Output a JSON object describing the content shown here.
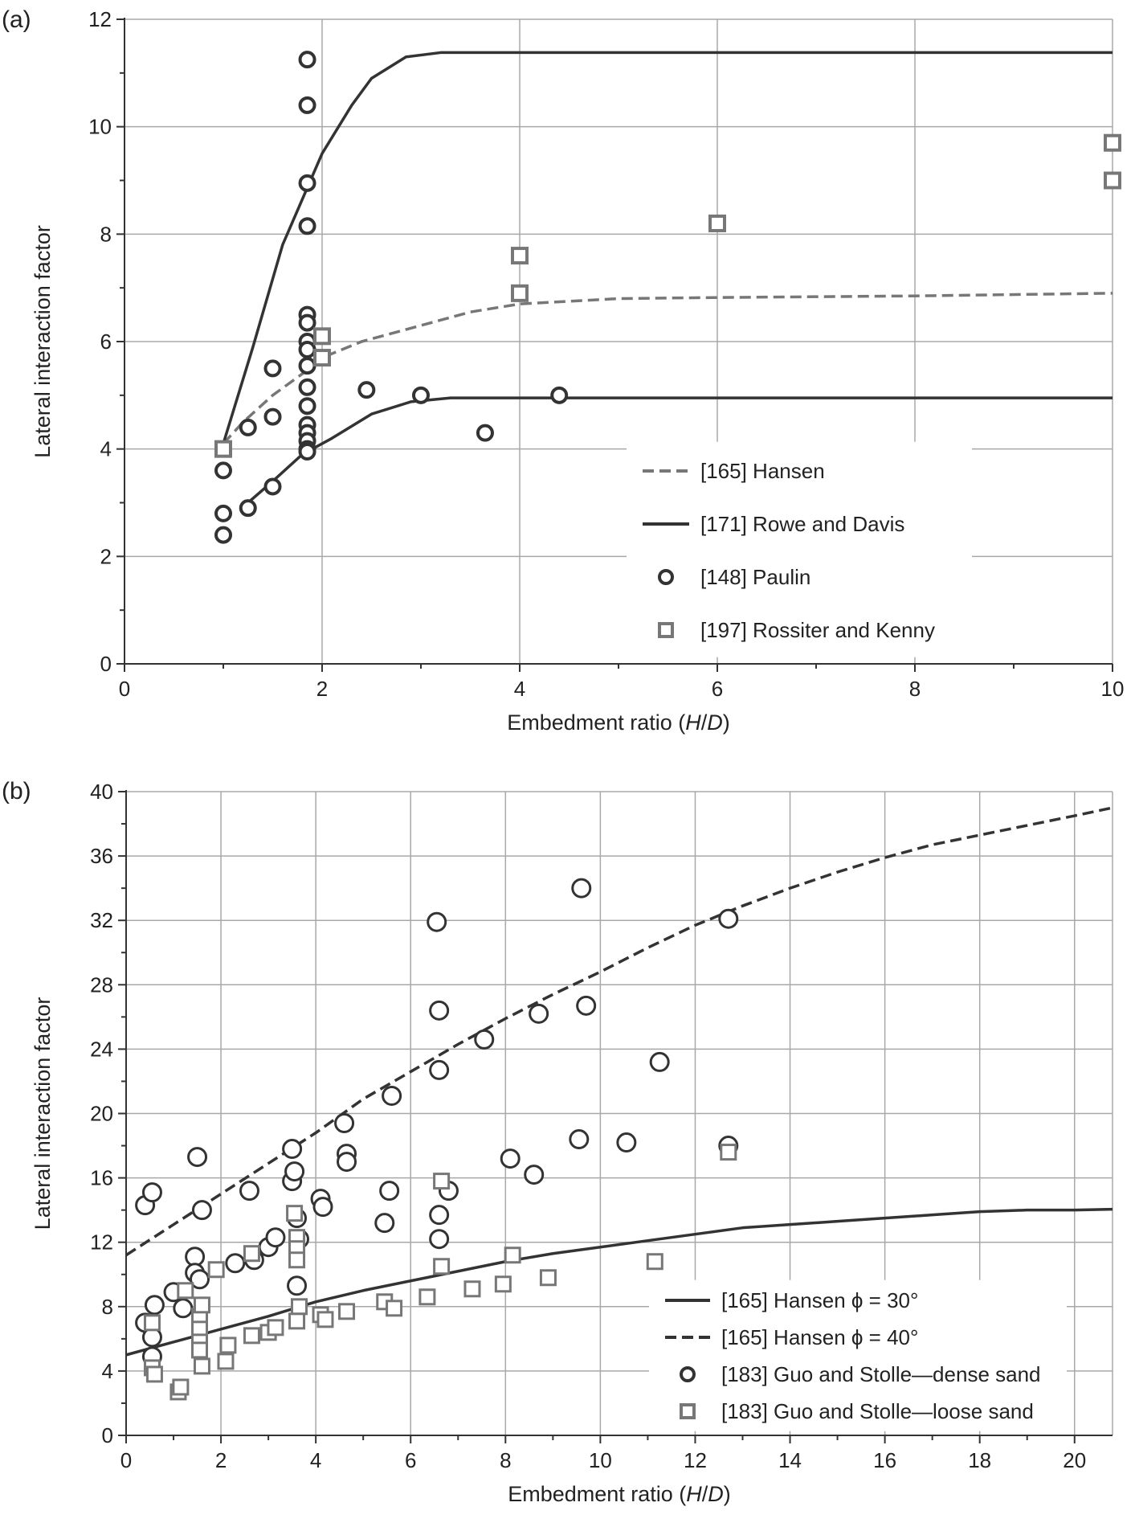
{
  "chart_data": [
    {
      "panel_label": "(a)",
      "type": "scatter",
      "xlabel_parts": [
        "Embedment ratio (",
        "H",
        "/",
        "D",
        ")"
      ],
      "ylabel": "Lateral interaction factor",
      "xlim": [
        0,
        10
      ],
      "ylim": [
        0,
        12
      ],
      "xticks": [
        0,
        2,
        4,
        6,
        8,
        10
      ],
      "yticks": [
        0,
        2,
        4,
        6,
        8,
        10,
        12
      ],
      "grid": true,
      "legend_position": "lower-right",
      "colors": {
        "dark": "#333333",
        "gray": "#777777"
      },
      "series": [
        {
          "name": "[165] Hansen",
          "kind": "line",
          "style": "dashed",
          "color": "#777777",
          "x": [
            1.0,
            1.2,
            1.5,
            1.8,
            2.0,
            2.4,
            3.0,
            3.5,
            4.0,
            5.0,
            6.0,
            8.0,
            10.0
          ],
          "y": [
            4.1,
            4.5,
            5.0,
            5.4,
            5.7,
            6.0,
            6.3,
            6.55,
            6.7,
            6.8,
            6.82,
            6.85,
            6.9
          ]
        },
        {
          "name": "[171] Rowe and Davis",
          "kind": "line",
          "style": "solid",
          "color": "#333333",
          "x": [
            1.0,
            1.3,
            1.6,
            2.0,
            2.3,
            2.5,
            2.85,
            3.2,
            10.0
          ],
          "y": [
            4.1,
            5.9,
            7.8,
            9.5,
            10.4,
            10.9,
            11.3,
            11.38,
            11.38
          ]
        },
        {
          "name": "",
          "kind": "line",
          "style": "solid",
          "color": "#333333",
          "x": [
            1.25,
            1.5,
            1.8,
            2.1,
            2.5,
            2.9,
            3.3,
            10.0
          ],
          "y": [
            3.0,
            3.4,
            3.9,
            4.2,
            4.65,
            4.88,
            4.95,
            4.95
          ]
        },
        {
          "name": "[148] Paulin",
          "kind": "marker",
          "marker": "circle",
          "color": "#333333",
          "x": [
            1.0,
            1.0,
            1.0,
            1.25,
            1.25,
            1.5,
            1.5,
            1.5,
            1.85,
            1.85,
            1.85,
            1.85,
            1.85,
            1.85,
            1.85,
            1.85,
            1.85,
            1.85,
            1.85,
            1.85,
            1.85,
            1.85,
            1.85,
            1.85,
            2.45,
            3.0,
            3.65,
            4.4
          ],
          "y": [
            3.6,
            2.8,
            2.4,
            4.4,
            2.9,
            5.5,
            4.6,
            3.3,
            11.25,
            10.4,
            8.95,
            8.15,
            6.5,
            6.35,
            6.0,
            5.85,
            5.55,
            5.15,
            4.8,
            4.45,
            4.3,
            4.15,
            4.0,
            3.95,
            5.1,
            5.0,
            4.3,
            5.0
          ]
        },
        {
          "name": "[197] Rossiter and Kenny",
          "kind": "marker",
          "marker": "square",
          "color": "#777777",
          "x": [
            1.0,
            2.0,
            2.0,
            4.0,
            4.0,
            6.0,
            10.0,
            10.0
          ],
          "y": [
            4.0,
            6.1,
            5.7,
            7.6,
            6.9,
            8.2,
            9.7,
            9.0
          ]
        }
      ]
    },
    {
      "panel_label": "(b)",
      "type": "scatter",
      "xlabel_parts": [
        "Embedment ratio (",
        "H",
        "/",
        "D",
        ")"
      ],
      "ylabel": "Lateral interaction factor",
      "xlim": [
        0,
        20.8
      ],
      "ylim": [
        0,
        40
      ],
      "xticks": [
        0,
        2,
        4,
        6,
        8,
        10,
        12,
        14,
        16,
        18,
        20
      ],
      "yticks": [
        0,
        4,
        8,
        12,
        16,
        20,
        24,
        28,
        32,
        36,
        40
      ],
      "grid": true,
      "legend_position": "lower-right",
      "colors": {
        "dark": "#333333",
        "gray": "#777777"
      },
      "series": [
        {
          "name": "[165] Hansen ϕ = 30°",
          "kind": "line",
          "style": "solid",
          "color": "#333333",
          "x": [
            0,
            1,
            2,
            3,
            4,
            5,
            6,
            7,
            8,
            9,
            10,
            11,
            12,
            13,
            14,
            15,
            16,
            17,
            18,
            19,
            20,
            20.8
          ],
          "y": [
            5.0,
            5.8,
            6.6,
            7.4,
            8.3,
            9.0,
            9.6,
            10.2,
            10.8,
            11.3,
            11.7,
            12.1,
            12.5,
            12.9,
            13.1,
            13.3,
            13.5,
            13.7,
            13.9,
            14.0,
            14.0,
            14.05
          ]
        },
        {
          "name": "[165] Hansen ϕ = 40°",
          "kind": "line",
          "style": "dashed",
          "color": "#333333",
          "x": [
            0,
            1,
            2,
            3,
            4,
            5,
            6,
            7,
            8,
            9,
            10,
            11,
            12,
            13,
            14,
            15,
            16,
            17,
            18,
            19,
            20,
            20.8
          ],
          "y": [
            11.2,
            13.1,
            15.0,
            16.9,
            18.8,
            20.9,
            22.6,
            24.3,
            25.9,
            27.4,
            28.8,
            30.3,
            31.7,
            32.9,
            34.0,
            35.0,
            35.9,
            36.7,
            37.3,
            37.9,
            38.5,
            39.0
          ]
        },
        {
          "name": "[183] Guo and Stolle—dense sand",
          "kind": "marker",
          "marker": "circle",
          "color": "#333333",
          "x": [
            0.4,
            0.55,
            0.4,
            0.55,
            0.55,
            0.6,
            1.0,
            1.2,
            1.45,
            1.45,
            1.5,
            1.6,
            1.55,
            2.3,
            2.7,
            2.6,
            3.0,
            3.15,
            3.5,
            3.5,
            3.55,
            3.6,
            3.65,
            3.6,
            4.1,
            4.15,
            4.6,
            4.65,
            4.65,
            5.45,
            5.55,
            5.6,
            6.55,
            6.6,
            6.6,
            6.6,
            6.6,
            6.8,
            7.55,
            8.1,
            8.6,
            8.7,
            9.55,
            9.6,
            9.7,
            10.55,
            11.25,
            12.7,
            12.7
          ],
          "y": [
            14.3,
            15.1,
            7.0,
            6.1,
            4.9,
            8.1,
            8.9,
            7.9,
            11.1,
            10.1,
            17.3,
            14.0,
            9.7,
            10.7,
            10.9,
            15.2,
            11.7,
            12.3,
            17.8,
            15.8,
            16.4,
            13.5,
            12.2,
            9.3,
            14.7,
            14.2,
            19.4,
            17.5,
            17.0,
            13.2,
            15.2,
            21.1,
            31.9,
            26.4,
            22.7,
            13.7,
            12.2,
            15.2,
            24.6,
            17.2,
            16.2,
            26.2,
            18.4,
            34.0,
            26.7,
            18.2,
            23.2,
            32.1,
            18.0
          ]
        },
        {
          "name": "[183] Guo and Stolle—loose sand",
          "kind": "marker",
          "marker": "square",
          "color": "#777777",
          "x": [
            0.55,
            0.55,
            0.6,
            1.1,
            1.15,
            1.25,
            1.55,
            1.55,
            1.55,
            1.55,
            1.6,
            1.6,
            1.9,
            2.1,
            2.15,
            2.65,
            2.65,
            3.0,
            3.15,
            3.55,
            3.6,
            3.6,
            3.6,
            3.65,
            3.6,
            4.1,
            4.2,
            4.65,
            5.45,
            5.65,
            6.35,
            6.65,
            6.65,
            7.3,
            7.95,
            8.15,
            8.9,
            11.15,
            12.7
          ],
          "y": [
            7.0,
            4.2,
            3.8,
            2.7,
            3.0,
            9.0,
            7.4,
            6.6,
            5.8,
            5.3,
            8.1,
            4.3,
            10.3,
            4.6,
            5.6,
            6.2,
            11.3,
            6.4,
            6.7,
            13.8,
            12.3,
            11.6,
            10.9,
            8.0,
            7.1,
            7.5,
            7.2,
            7.7,
            8.3,
            7.9,
            8.6,
            15.8,
            10.5,
            9.1,
            9.4,
            11.2,
            9.8,
            10.8,
            17.6
          ]
        }
      ]
    }
  ]
}
